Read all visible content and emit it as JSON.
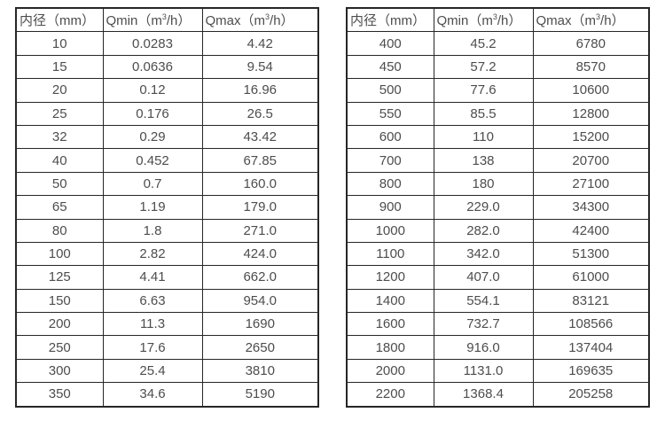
{
  "colors": {
    "background": "#ffffff",
    "border": "#262626",
    "text": "#4d4d4d"
  },
  "tables": [
    {
      "name": "flow-table-small-diameters",
      "headers": [
        {
          "pre": "内径（mm）",
          "sup": "",
          "post": ""
        },
        {
          "pre": "Qmin（m",
          "sup": "3",
          "post": "/h）"
        },
        {
          "pre": "Qmax（m",
          "sup": "3",
          "post": "/h）"
        }
      ],
      "rows": [
        [
          "10",
          "0.0283",
          "4.42"
        ],
        [
          "15",
          "0.0636",
          "9.54"
        ],
        [
          "20",
          "0.12",
          "16.96"
        ],
        [
          "25",
          "0.176",
          "26.5"
        ],
        [
          "32",
          "0.29",
          "43.42"
        ],
        [
          "40",
          "0.452",
          "67.85"
        ],
        [
          "50",
          "0.7",
          "160.0"
        ],
        [
          "65",
          "1.19",
          "179.0"
        ],
        [
          "80",
          "1.8",
          "271.0"
        ],
        [
          "100",
          "2.82",
          "424.0"
        ],
        [
          "125",
          "4.41",
          "662.0"
        ],
        [
          "150",
          "6.63",
          "954.0"
        ],
        [
          "200",
          "11.3",
          "1690"
        ],
        [
          "250",
          "17.6",
          "2650"
        ],
        [
          "300",
          "25.4",
          "3810"
        ],
        [
          "350",
          "34.6",
          "5190"
        ]
      ]
    },
    {
      "name": "flow-table-large-diameters",
      "headers": [
        {
          "pre": "内径（mm）",
          "sup": "",
          "post": ""
        },
        {
          "pre": "Qmin（m",
          "sup": "3",
          "post": "/h）"
        },
        {
          "pre": "Qmax（m",
          "sup": "3",
          "post": "/h）"
        }
      ],
      "rows": [
        [
          "400",
          "45.2",
          "6780"
        ],
        [
          "450",
          "57.2",
          "8570"
        ],
        [
          "500",
          "77.6",
          "10600"
        ],
        [
          "550",
          "85.5",
          "12800"
        ],
        [
          "600",
          "110",
          "15200"
        ],
        [
          "700",
          "138",
          "20700"
        ],
        [
          "800",
          "180",
          "27100"
        ],
        [
          "900",
          "229.0",
          "34300"
        ],
        [
          "1000",
          "282.0",
          "42400"
        ],
        [
          "1100",
          "342.0",
          "51300"
        ],
        [
          "1200",
          "407.0",
          "61000"
        ],
        [
          "1400",
          "554.1",
          "83121"
        ],
        [
          "1600",
          "732.7",
          "108566"
        ],
        [
          "1800",
          "916.0",
          "137404"
        ],
        [
          "2000",
          "1131.0",
          "169635"
        ],
        [
          "2200",
          "1368.4",
          "205258"
        ]
      ]
    }
  ]
}
